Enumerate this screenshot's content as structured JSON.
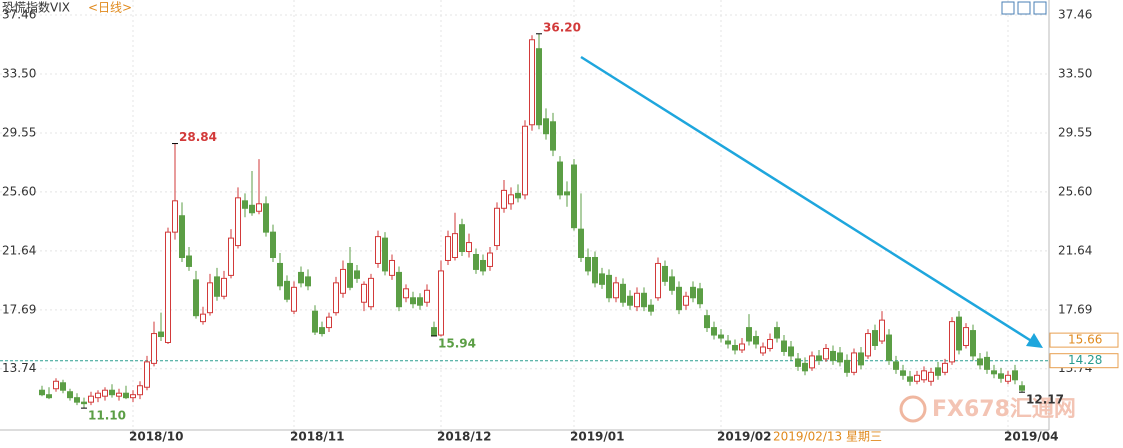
{
  "chart_data": {
    "type": "candlestick",
    "title": "恐慌指数VIX",
    "title_suffix": "<日线>",
    "up_color": "#d23a3a",
    "down_color": "#5b9e45",
    "ylim": [
      9.7,
      37.46
    ],
    "yticks": [
      13.74,
      17.69,
      21.64,
      {
        "value": 25.6,
        "label": "25.60"
      },
      29.55,
      {
        "value": 33.5,
        "label": "33.50"
      },
      37.46
    ],
    "grid": true,
    "categories": [
      null,
      null,
      null,
      null,
      null,
      null,
      null,
      null,
      null,
      null,
      null,
      null,
      null,
      "2018/10",
      null,
      null,
      null,
      null,
      null,
      null,
      null,
      null,
      null,
      null,
      null,
      null,
      null,
      null,
      null,
      null,
      null,
      null,
      null,
      null,
      null,
      null,
      "2018/11",
      null,
      null,
      null,
      null,
      null,
      null,
      null,
      null,
      null,
      null,
      null,
      null,
      null,
      null,
      null,
      null,
      null,
      null,
      null,
      null,
      "2018/12",
      null,
      null,
      null,
      null,
      null,
      null,
      null,
      null,
      null,
      null,
      null,
      null,
      null,
      null,
      null,
      null,
      null,
      null,
      "2019/01",
      null,
      null,
      null,
      null,
      null,
      null,
      null,
      null,
      null,
      null,
      null,
      null,
      null,
      null,
      null,
      null,
      null,
      null,
      null,
      null,
      "2019/02",
      null,
      null,
      null,
      null,
      null,
      null,
      null,
      null,
      null,
      null,
      null,
      null,
      null,
      null,
      null,
      null,
      null,
      null,
      null,
      null,
      null,
      null,
      null,
      null,
      null,
      null,
      null,
      null,
      null,
      null,
      null,
      null,
      null,
      null,
      null,
      null,
      null,
      null,
      null,
      null,
      "2019/04",
      null,
      null,
      null
    ],
    "ohlc": [
      [
        12.3,
        12.6,
        11.9,
        12.0
      ],
      [
        12.0,
        12.5,
        11.7,
        11.8
      ],
      [
        12.4,
        13.1,
        12.2,
        12.9
      ],
      [
        12.8,
        13.0,
        12.1,
        12.3
      ],
      [
        12.2,
        12.4,
        11.6,
        11.8
      ],
      [
        11.8,
        12.1,
        11.3,
        11.5
      ],
      [
        11.5,
        11.8,
        11.1,
        11.4
      ],
      [
        11.5,
        12.2,
        11.3,
        11.9
      ],
      [
        11.8,
        12.3,
        11.5,
        12.1
      ],
      [
        11.9,
        12.5,
        11.6,
        12.3
      ],
      [
        12.3,
        12.7,
        11.8,
        12.0
      ],
      [
        11.9,
        12.4,
        11.6,
        12.1
      ],
      [
        12.1,
        12.6,
        11.7,
        11.8
      ],
      [
        11.8,
        12.3,
        11.5,
        12.0
      ],
      [
        12.0,
        12.9,
        11.7,
        12.6
      ],
      [
        12.5,
        14.6,
        12.3,
        14.2
      ],
      [
        14.1,
        16.9,
        13.9,
        16.1
      ],
      [
        16.2,
        17.5,
        15.6,
        15.9
      ],
      [
        15.5,
        23.2,
        15.4,
        22.9
      ],
      [
        22.9,
        28.84,
        22.4,
        25.0
      ],
      [
        24.0,
        24.9,
        20.9,
        21.2
      ],
      [
        21.3,
        21.9,
        20.3,
        20.6
      ],
      [
        19.7,
        20.3,
        17.1,
        17.3
      ],
      [
        16.9,
        17.9,
        16.7,
        17.4
      ],
      [
        17.5,
        20.1,
        17.3,
        19.5
      ],
      [
        19.9,
        20.5,
        18.3,
        18.6
      ],
      [
        18.6,
        20.3,
        18.4,
        19.8
      ],
      [
        20.0,
        23.1,
        19.8,
        22.5
      ],
      [
        22.0,
        25.9,
        21.8,
        25.2
      ],
      [
        25.0,
        25.5,
        23.9,
        24.5
      ],
      [
        24.7,
        27.0,
        24.0,
        24.2
      ],
      [
        24.3,
        27.8,
        24.1,
        24.8
      ],
      [
        24.8,
        25.3,
        22.6,
        22.9
      ],
      [
        22.9,
        23.4,
        20.9,
        21.2
      ],
      [
        20.8,
        21.5,
        19.0,
        19.3
      ],
      [
        19.6,
        20.0,
        18.2,
        18.4
      ],
      [
        17.6,
        19.6,
        17.4,
        19.2
      ],
      [
        20.2,
        20.6,
        19.2,
        19.5
      ],
      [
        19.9,
        20.4,
        19.0,
        19.3
      ],
      [
        17.6,
        18.0,
        16.0,
        16.2
      ],
      [
        16.5,
        16.9,
        15.9,
        16.1
      ],
      [
        16.5,
        17.5,
        16.2,
        17.2
      ],
      [
        17.5,
        19.9,
        17.3,
        19.5
      ],
      [
        18.8,
        21.0,
        18.5,
        20.4
      ],
      [
        20.8,
        21.9,
        19.0,
        19.2
      ],
      [
        20.3,
        20.7,
        19.5,
        19.8
      ],
      [
        18.2,
        19.6,
        17.6,
        19.4
      ],
      [
        17.9,
        20.1,
        17.7,
        19.8
      ],
      [
        20.8,
        23.0,
        20.5,
        22.6
      ],
      [
        22.5,
        22.9,
        20.0,
        20.3
      ],
      [
        20.0,
        21.4,
        19.7,
        21.0
      ],
      [
        20.2,
        20.6,
        17.6,
        17.9
      ],
      [
        18.5,
        19.4,
        18.2,
        19.1
      ],
      [
        18.5,
        18.9,
        17.8,
        18.1
      ],
      [
        18.5,
        18.8,
        17.7,
        18.0
      ],
      [
        18.2,
        19.4,
        17.9,
        19.0
      ],
      [
        16.5,
        16.9,
        15.94,
        16.0
      ],
      [
        16.0,
        21.0,
        15.9,
        20.3
      ],
      [
        21.0,
        23.0,
        20.7,
        22.6
      ],
      [
        21.2,
        24.2,
        21.0,
        22.8
      ],
      [
        23.4,
        23.8,
        21.3,
        21.6
      ],
      [
        21.6,
        22.8,
        21.2,
        22.2
      ],
      [
        21.4,
        21.8,
        20.1,
        20.4
      ],
      [
        21.0,
        21.4,
        20.0,
        20.3
      ],
      [
        20.6,
        21.9,
        20.3,
        21.5
      ],
      [
        22.0,
        24.9,
        21.7,
        24.5
      ],
      [
        24.5,
        26.4,
        24.2,
        25.7
      ],
      [
        24.8,
        25.9,
        24.4,
        25.4
      ],
      [
        25.5,
        26.1,
        24.9,
        25.2
      ],
      [
        25.4,
        30.4,
        25.1,
        30.0
      ],
      [
        30.1,
        36.1,
        29.7,
        35.8
      ],
      [
        35.2,
        36.2,
        29.8,
        30.1
      ],
      [
        30.5,
        31.2,
        29.1,
        29.5
      ],
      [
        30.3,
        30.9,
        28.0,
        28.4
      ],
      [
        27.6,
        28.0,
        25.1,
        25.4
      ],
      [
        25.6,
        26.3,
        24.6,
        25.4
      ],
      [
        27.4,
        27.8,
        23.0,
        23.2
      ],
      [
        23.1,
        25.5,
        20.9,
        21.2
      ],
      [
        21.2,
        21.8,
        20.0,
        20.3
      ],
      [
        21.2,
        21.6,
        19.2,
        19.5
      ],
      [
        20.1,
        20.5,
        19.1,
        19.4
      ],
      [
        20.0,
        20.4,
        18.2,
        18.5
      ],
      [
        18.5,
        19.9,
        18.2,
        19.5
      ],
      [
        19.4,
        19.8,
        17.9,
        18.2
      ],
      [
        18.6,
        19.0,
        17.7,
        18.0
      ],
      [
        17.9,
        19.2,
        17.6,
        18.8
      ],
      [
        18.8,
        19.2,
        17.6,
        17.9
      ],
      [
        18.0,
        18.4,
        17.3,
        17.6
      ],
      [
        18.5,
        21.2,
        18.3,
        20.8
      ],
      [
        20.6,
        21.0,
        19.3,
        19.6
      ],
      [
        19.9,
        20.4,
        18.7,
        19.0
      ],
      [
        19.2,
        19.6,
        17.4,
        17.7
      ],
      [
        18.0,
        18.9,
        17.7,
        18.6
      ],
      [
        19.2,
        19.6,
        18.2,
        18.5
      ],
      [
        19.1,
        19.5,
        17.8,
        18.1
      ],
      [
        17.3,
        17.7,
        16.2,
        16.5
      ],
      [
        16.5,
        16.9,
        15.7,
        16.0
      ],
      [
        16.0,
        16.4,
        15.5,
        15.8
      ],
      [
        15.6,
        16.0,
        15.1,
        15.4
      ],
      [
        15.3,
        15.7,
        14.7,
        15.0
      ],
      [
        15.0,
        15.8,
        14.8,
        15.4
      ],
      [
        16.5,
        17.4,
        15.3,
        15.6
      ],
      [
        15.9,
        16.3,
        15.1,
        15.4
      ],
      [
        14.8,
        15.5,
        14.6,
        15.2
      ],
      [
        15.1,
        16.1,
        14.9,
        15.7
      ],
      [
        16.5,
        16.9,
        15.5,
        15.8
      ],
      [
        15.6,
        16.0,
        14.6,
        14.9
      ],
      [
        15.2,
        15.6,
        14.3,
        14.6
      ],
      [
        14.4,
        14.8,
        13.6,
        13.9
      ],
      [
        14.1,
        14.5,
        13.3,
        13.6
      ],
      [
        13.8,
        14.9,
        13.6,
        14.6
      ],
      [
        14.6,
        15.0,
        14.0,
        14.3
      ],
      [
        14.4,
        15.4,
        14.2,
        15.1
      ],
      [
        14.9,
        15.3,
        14.0,
        14.3
      ],
      [
        14.8,
        15.2,
        13.9,
        14.2
      ],
      [
        14.3,
        14.7,
        13.2,
        13.5
      ],
      [
        13.5,
        15.1,
        13.3,
        14.8
      ],
      [
        14.8,
        15.2,
        13.7,
        14.0
      ],
      [
        14.6,
        16.4,
        14.4,
        16.1
      ],
      [
        16.3,
        16.7,
        15.0,
        15.3
      ],
      [
        15.6,
        17.6,
        15.4,
        17.0
      ],
      [
        16.0,
        16.4,
        14.0,
        14.3
      ],
      [
        14.2,
        14.6,
        13.4,
        13.7
      ],
      [
        13.6,
        14.0,
        13.0,
        13.3
      ],
      [
        13.2,
        13.6,
        12.6,
        12.9
      ],
      [
        12.9,
        13.6,
        12.7,
        13.3
      ],
      [
        13.0,
        13.9,
        12.8,
        13.6
      ],
      [
        12.9,
        13.8,
        12.6,
        13.5
      ],
      [
        13.8,
        14.2,
        13.0,
        13.3
      ],
      [
        13.5,
        14.4,
        13.3,
        14.1
      ],
      [
        14.2,
        17.2,
        14.0,
        16.9
      ],
      [
        17.2,
        17.6,
        14.7,
        15.0
      ],
      [
        15.3,
        16.8,
        15.1,
        16.5
      ],
      [
        16.3,
        16.7,
        14.3,
        14.6
      ],
      [
        14.4,
        14.8,
        13.7,
        14.0
      ],
      [
        14.5,
        14.9,
        13.4,
        13.7
      ],
      [
        13.6,
        14.0,
        13.1,
        13.4
      ],
      [
        13.4,
        13.8,
        12.8,
        13.1
      ],
      [
        12.9,
        13.6,
        12.7,
        13.3
      ],
      [
        13.6,
        14.0,
        12.7,
        13.0
      ],
      [
        12.6,
        12.9,
        12.17,
        12.3
      ]
    ],
    "extreme_labels": [
      {
        "value": 36.2,
        "label": "36.20",
        "index": 71,
        "color": "#d23a3a"
      },
      {
        "value": 28.84,
        "label": "28.84",
        "index": 19,
        "color": "#d23a3a"
      },
      {
        "value": 11.1,
        "label": "11.10",
        "index": 6,
        "color": "#5b9e45"
      },
      {
        "value": 15.94,
        "label": "15.94",
        "index": 56,
        "color": "#5b9e45"
      },
      {
        "value": 12.17,
        "label": "12.17",
        "index": 140,
        "color": "#333333"
      }
    ],
    "price_line": {
      "value": 14.28,
      "label": "14.28",
      "color": "#2a9d8f"
    },
    "marker_label": {
      "value": 15.66,
      "label": "15.66"
    },
    "date_tooltip": "2019/02/13 星期三",
    "watermark": "FX678汇通网"
  }
}
